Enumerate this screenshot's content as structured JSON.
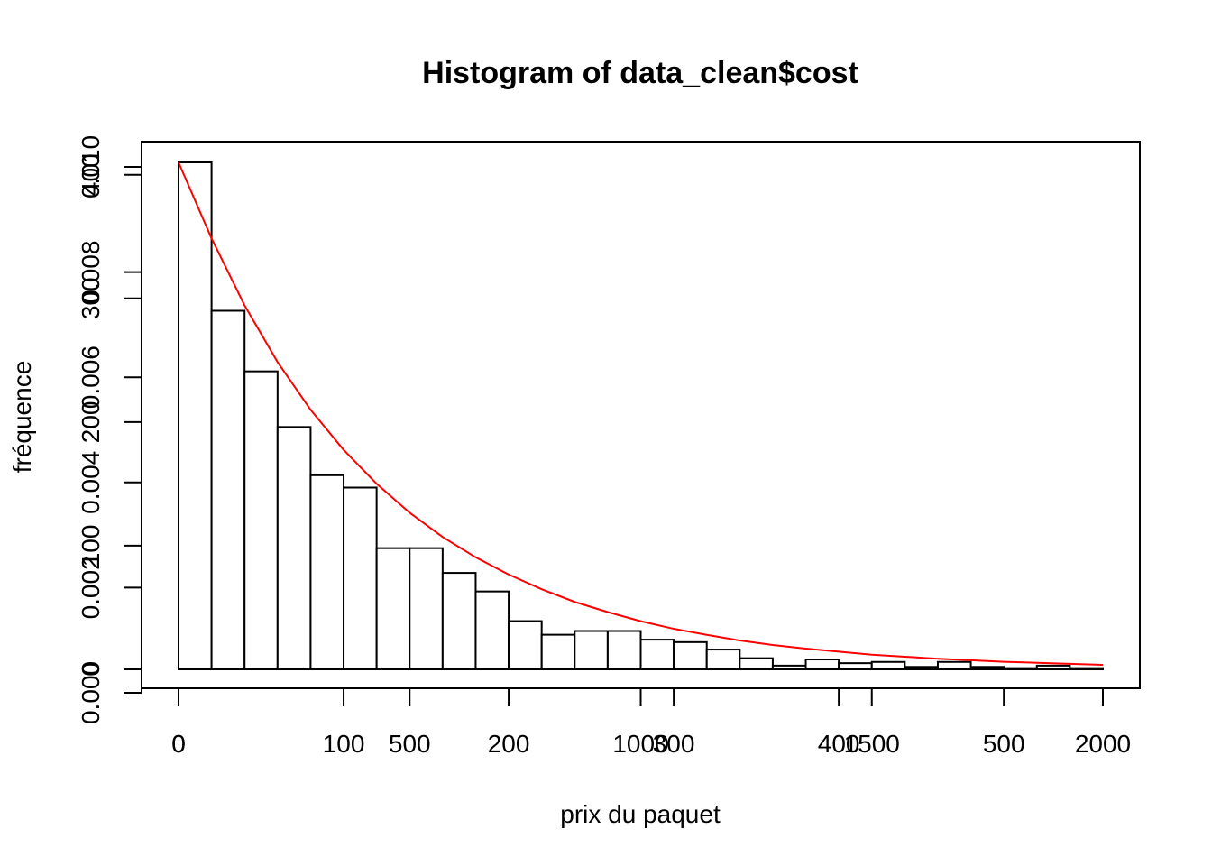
{
  "chart_data": {
    "type": "bar",
    "title": "Histogram of data_clean$cost",
    "xlabel": "prix du paquet",
    "ylabel": "fréquence",
    "bin_width": 50,
    "x_start": 0,
    "counts": [
      410,
      290,
      241,
      196,
      157,
      147,
      98,
      98,
      78,
      63,
      39,
      28,
      31,
      31,
      24,
      22,
      16,
      9,
      3,
      8,
      5,
      6,
      2,
      6,
      2,
      1,
      3,
      1
    ],
    "xlim": [
      0,
      1400
    ],
    "ylim": [
      0,
      410
    ],
    "grid": false,
    "curve_color": "#ff0000",
    "axes_x_primary": {
      "max": 1400,
      "ticks": [
        0,
        250,
        500,
        750,
        1000,
        1250
      ],
      "labels": [
        "0",
        "100",
        "200",
        "300",
        "400",
        "500"
      ]
    },
    "axes_x_secondary": {
      "max": 2800,
      "ticks": [
        0,
        700,
        1400,
        2100,
        2800
      ],
      "labels": [
        "0",
        "500",
        "1000",
        "1500",
        "2000"
      ]
    },
    "axes_y_primary": {
      "ticks": [
        0,
        100,
        200,
        300,
        400
      ],
      "labels": [
        "0",
        "100",
        "200",
        "300",
        "400"
      ]
    },
    "axes_y_secondary": {
      "scale_to_primary": 41000,
      "ticks": [
        0,
        0.002,
        0.004,
        0.006,
        0.008,
        0.01
      ],
      "labels": [
        "0.000",
        "0.002",
        "0.004",
        "0.006",
        "0.008",
        "0.010"
      ]
    },
    "density_curve": {
      "x": [
        0,
        50,
        100,
        150,
        200,
        250,
        300,
        350,
        400,
        450,
        500,
        550,
        600,
        650,
        700,
        750,
        800,
        850,
        900,
        950,
        1000,
        1050,
        1100,
        1150,
        1200,
        1250,
        1300,
        1350,
        1400
      ],
      "y": [
        0.01,
        0.0085,
        0.00718,
        0.00606,
        0.00512,
        0.00433,
        0.00366,
        0.00309,
        0.00261,
        0.00221,
        0.00187,
        0.00158,
        0.00133,
        0.00113,
        0.00095,
        0.0008,
        0.00068,
        0.00057,
        0.00048,
        0.00041,
        0.00035,
        0.00029,
        0.00025,
        0.00021,
        0.00018,
        0.00015,
        0.00013,
        0.00011,
        9e-05
      ]
    }
  }
}
